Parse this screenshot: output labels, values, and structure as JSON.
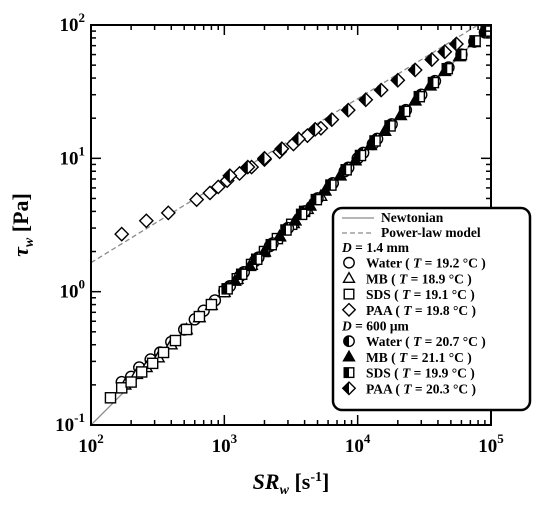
{
  "chart_data": {
    "type": "scatter",
    "xscale": "log",
    "yscale": "log",
    "xlim": [
      100,
      100000
    ],
    "ylim": [
      0.1,
      100
    ],
    "xlabel": {
      "main": "SR",
      "sub": "w",
      "unit": " [s",
      "unit_sup": "-1",
      "unit_end": "]"
    },
    "ylabel": {
      "main": "τ",
      "sub": "w",
      "unit": " [Pa]"
    },
    "xticks": [
      {
        "base": "10",
        "exp": "2",
        "value": 100
      },
      {
        "base": "10",
        "exp": "3",
        "value": 1000
      },
      {
        "base": "10",
        "exp": "4",
        "value": 10000
      },
      {
        "base": "10",
        "exp": "5",
        "value": 100000
      }
    ],
    "yticks": [
      {
        "base": "10",
        "exp": "-1",
        "value": 0.1
      },
      {
        "base": "10",
        "exp": "0",
        "value": 1
      },
      {
        "base": "10",
        "exp": "1",
        "value": 10
      },
      {
        "base": "10",
        "exp": "2",
        "value": 100
      }
    ],
    "lines": [
      {
        "name": "Newtonian",
        "style": "solid",
        "color": "#8a8a8a",
        "points": [
          [
            100,
            0.1
          ],
          [
            100000,
            100
          ]
        ]
      },
      {
        "name": "Power-law model",
        "style": "dashed",
        "color": "#8a8a8a",
        "points": [
          [
            100,
            1.65
          ],
          [
            1000,
            6.8
          ],
          [
            10000,
            28
          ],
          [
            100000,
            115
          ]
        ]
      }
    ],
    "legend_groups": [
      {
        "header": "D = 1.4 mm",
        "header_var": "D",
        "header_rest": " = 1.4 mm"
      },
      {
        "header": "D = 600 μm",
        "header_var": "D",
        "header_rest": " = 600 μm"
      }
    ],
    "series": [
      {
        "name": "Water",
        "temp": "19.2",
        "marker": "circle",
        "fill": "open",
        "group": 0,
        "x": [
          170,
          200,
          230,
          280,
          330,
          400,
          500,
          600,
          700,
          850,
          1000,
          1300,
          1700,
          2200,
          3000,
          4000,
          5000,
          6500,
          8000,
          10000,
          13000
        ],
        "y": [
          0.21,
          0.23,
          0.27,
          0.31,
          0.35,
          0.42,
          0.52,
          0.62,
          0.72,
          0.86,
          1.01,
          1.3,
          1.7,
          2.2,
          3.0,
          4.0,
          5.0,
          6.5,
          8.0,
          10.0,
          12.8
        ]
      },
      {
        "name": "MB",
        "temp": "18.9",
        "marker": "triangle",
        "fill": "open",
        "group": 0,
        "x": [
          180,
          220,
          260,
          320,
          400,
          520,
          650,
          800,
          1000,
          1250,
          1600,
          2000,
          2600,
          3300,
          4200,
          5300
        ],
        "y": [
          0.2,
          0.24,
          0.27,
          0.32,
          0.4,
          0.52,
          0.64,
          0.79,
          0.99,
          1.24,
          1.58,
          1.98,
          2.58,
          3.25,
          4.15,
          5.2
        ]
      },
      {
        "name": "SDS",
        "temp": "19.1",
        "marker": "square",
        "fill": "open",
        "group": 0,
        "x": [
          140,
          170,
          200,
          240,
          290,
          350,
          430,
          520,
          650,
          800,
          1000,
          1250,
          1600,
          2000,
          2500,
          3200,
          4000
        ],
        "y": [
          0.16,
          0.19,
          0.21,
          0.25,
          0.29,
          0.35,
          0.43,
          0.52,
          0.65,
          0.8,
          1.0,
          1.25,
          1.6,
          2.0,
          2.5,
          3.2,
          4.0
        ]
      },
      {
        "name": "PAA",
        "temp": "19.8",
        "marker": "diamond",
        "fill": "open",
        "group": 0,
        "x": [
          170,
          260,
          380,
          620,
          780,
          900,
          1050,
          1300,
          1600,
          2000,
          2600,
          3300,
          4200,
          5300
        ],
        "y": [
          2.7,
          3.4,
          3.9,
          4.9,
          5.5,
          6.1,
          6.8,
          7.7,
          8.6,
          9.8,
          11.2,
          12.8,
          14.8,
          16.8
        ]
      },
      {
        "name": "Water",
        "temp": "20.7",
        "marker": "circle",
        "fill": "half",
        "group": 1,
        "x": [
          1100,
          1400,
          1800,
          2300,
          3000,
          4000,
          5000,
          6500,
          8500,
          11000,
          14000,
          18000,
          23000,
          30000,
          38000,
          48000,
          60000,
          75000,
          90000
        ],
        "y": [
          1.1,
          1.4,
          1.8,
          2.3,
          3.0,
          4.0,
          5.0,
          6.5,
          8.5,
          11.0,
          14.0,
          18.0,
          23.0,
          30.0,
          38.0,
          48.0,
          60.0,
          75.0,
          88.0
        ]
      },
      {
        "name": "MB",
        "temp": "21.1",
        "marker": "triangle",
        "fill": "filled",
        "group": 1,
        "x": [
          1200,
          1550,
          2000,
          2600,
          3400,
          4400,
          5700,
          7400,
          9600,
          12500,
          16000,
          21000,
          27000,
          35000,
          45000,
          58000,
          75000
        ],
        "y": [
          1.2,
          1.55,
          2.0,
          2.6,
          3.4,
          4.4,
          5.7,
          7.4,
          9.6,
          12.5,
          16.0,
          21.0,
          27.0,
          35.0,
          45.0,
          58.0,
          74.0
        ]
      },
      {
        "name": "SDS",
        "temp": "19.9",
        "marker": "square",
        "fill": "half",
        "group": 1,
        "x": [
          1050,
          1350,
          1750,
          2250,
          2900,
          3800,
          4900,
          6300,
          8200,
          10500,
          13500,
          17500,
          22500,
          29000,
          37000,
          47000,
          60000,
          76000,
          92000
        ],
        "y": [
          1.05,
          1.35,
          1.75,
          2.25,
          2.9,
          3.8,
          4.9,
          6.3,
          8.2,
          10.5,
          13.5,
          17.5,
          22.5,
          29.0,
          37.0,
          47.0,
          60.0,
          76.0,
          90.0
        ]
      },
      {
        "name": "PAA",
        "temp": "20.3",
        "marker": "diamond",
        "fill": "half",
        "group": 1,
        "x": [
          1100,
          1500,
          2000,
          2700,
          3600,
          4800,
          6400,
          8500,
          11500,
          15000,
          20000,
          27000,
          36000,
          45000,
          55000
        ],
        "y": [
          7.4,
          8.6,
          10.0,
          11.8,
          14.0,
          16.5,
          19.5,
          23.0,
          27.5,
          32.5,
          38.5,
          46.0,
          55.0,
          63.0,
          72.0
        ]
      }
    ]
  }
}
